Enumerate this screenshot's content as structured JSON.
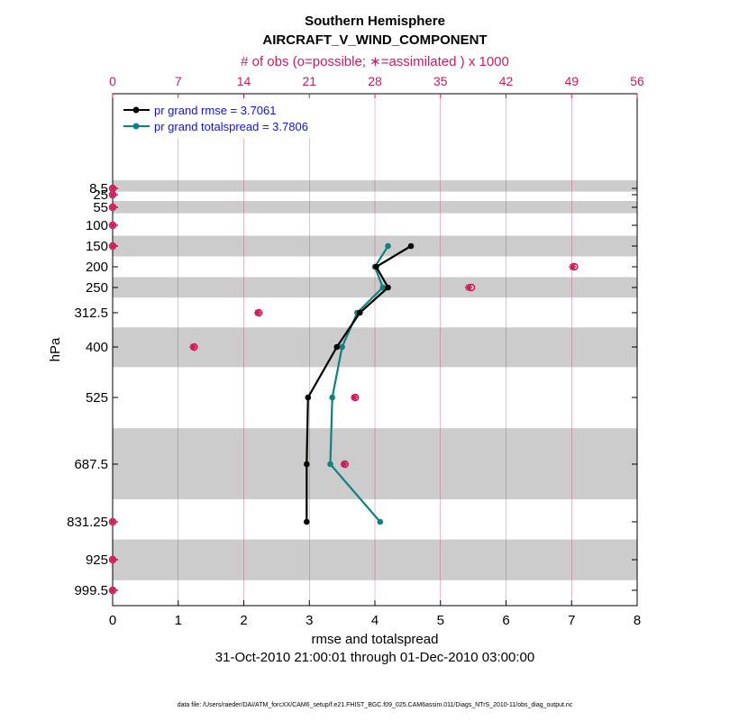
{
  "chart_data": {
    "type": "line",
    "title": "Southern Hemisphere",
    "subtitle": "AIRCRAFT_V_WIND_COMPONENT",
    "top_axis_label": "# of obs (o=possible; ∗=assimilated ) x 1000",
    "xlabel": "rmse and totalspread",
    "ylabel": "hPa",
    "date_range": "31-Oct-2010 21:00:01 through 01-Dec-2010 03:00:00",
    "footnote": "data file: /Users/raeder/DAI/ATM_forcXX/CAM6_setup/f.e21.FHIST_BGC.f09_025.CAM6assim.011/Diags_NTrS_2010-11/obs_diag_output.nc",
    "xlim": [
      0,
      8
    ],
    "x_ticks": [
      "0",
      "1",
      "2",
      "3",
      "4",
      "5",
      "6",
      "7",
      "8"
    ],
    "top_xlim": [
      0,
      56
    ],
    "top_ticks": [
      "0",
      "7",
      "14",
      "21",
      "28",
      "35",
      "42",
      "49",
      "56"
    ],
    "y_ticks": [
      "8.5",
      "25",
      "55",
      "100",
      "150",
      "200",
      "250",
      "312.5",
      "400",
      "525",
      "687.5",
      "831.25",
      "925",
      "999.5"
    ],
    "shaded_bands_hpa": [
      [
        0,
        17
      ],
      [
        40,
        70
      ],
      [
        125,
        175
      ],
      [
        225,
        275
      ],
      [
        350,
        450
      ],
      [
        600,
        775
      ],
      [
        875,
        975
      ]
    ],
    "legend": [
      "pr grand rmse = 3.7061",
      "pr grand totalspread = 3.7806"
    ],
    "series": [
      {
        "name": "rmse",
        "color": "#000000",
        "points": [
          [
            4.55,
            150
          ],
          [
            4.02,
            200
          ],
          [
            4.2,
            250
          ],
          [
            3.77,
            312.5
          ],
          [
            3.42,
            400
          ],
          [
            2.98,
            525
          ],
          [
            2.96,
            687.5
          ],
          [
            2.96,
            831.25
          ]
        ]
      },
      {
        "name": "totalspread",
        "color": "#128080",
        "points": [
          [
            4.2,
            150
          ],
          [
            4.0,
            200
          ],
          [
            4.12,
            250
          ],
          [
            3.73,
            312.5
          ],
          [
            3.5,
            400
          ],
          [
            3.35,
            525
          ],
          [
            3.32,
            687.5
          ],
          [
            4.08,
            831.25
          ]
        ]
      }
    ],
    "obs_counts": [
      {
        "level": 8.5,
        "possible": 0,
        "assimilated": 0
      },
      {
        "level": 25,
        "possible": 0,
        "assimilated": 0
      },
      {
        "level": 55,
        "possible": 0,
        "assimilated": 0
      },
      {
        "level": 100,
        "possible": 0,
        "assimilated": 0
      },
      {
        "level": 150,
        "possible": 0,
        "assimilated": 0
      },
      {
        "level": 200,
        "possible": 49.3,
        "assimilated": 49.1
      },
      {
        "level": 250,
        "possible": 38.3,
        "assimilated": 38.0
      },
      {
        "level": 312.5,
        "possible": 15.6,
        "assimilated": 15.5
      },
      {
        "level": 400,
        "possible": 8.7,
        "assimilated": 8.6
      },
      {
        "level": 525,
        "possible": 25.9,
        "assimilated": 25.8
      },
      {
        "level": 687.5,
        "possible": 24.8,
        "assimilated": 24.7
      },
      {
        "level": 831.25,
        "possible": 0,
        "assimilated": 0
      },
      {
        "level": 925,
        "possible": 0,
        "assimilated": 0
      },
      {
        "level": 999.5,
        "possible": 0,
        "assimilated": 0
      }
    ]
  }
}
